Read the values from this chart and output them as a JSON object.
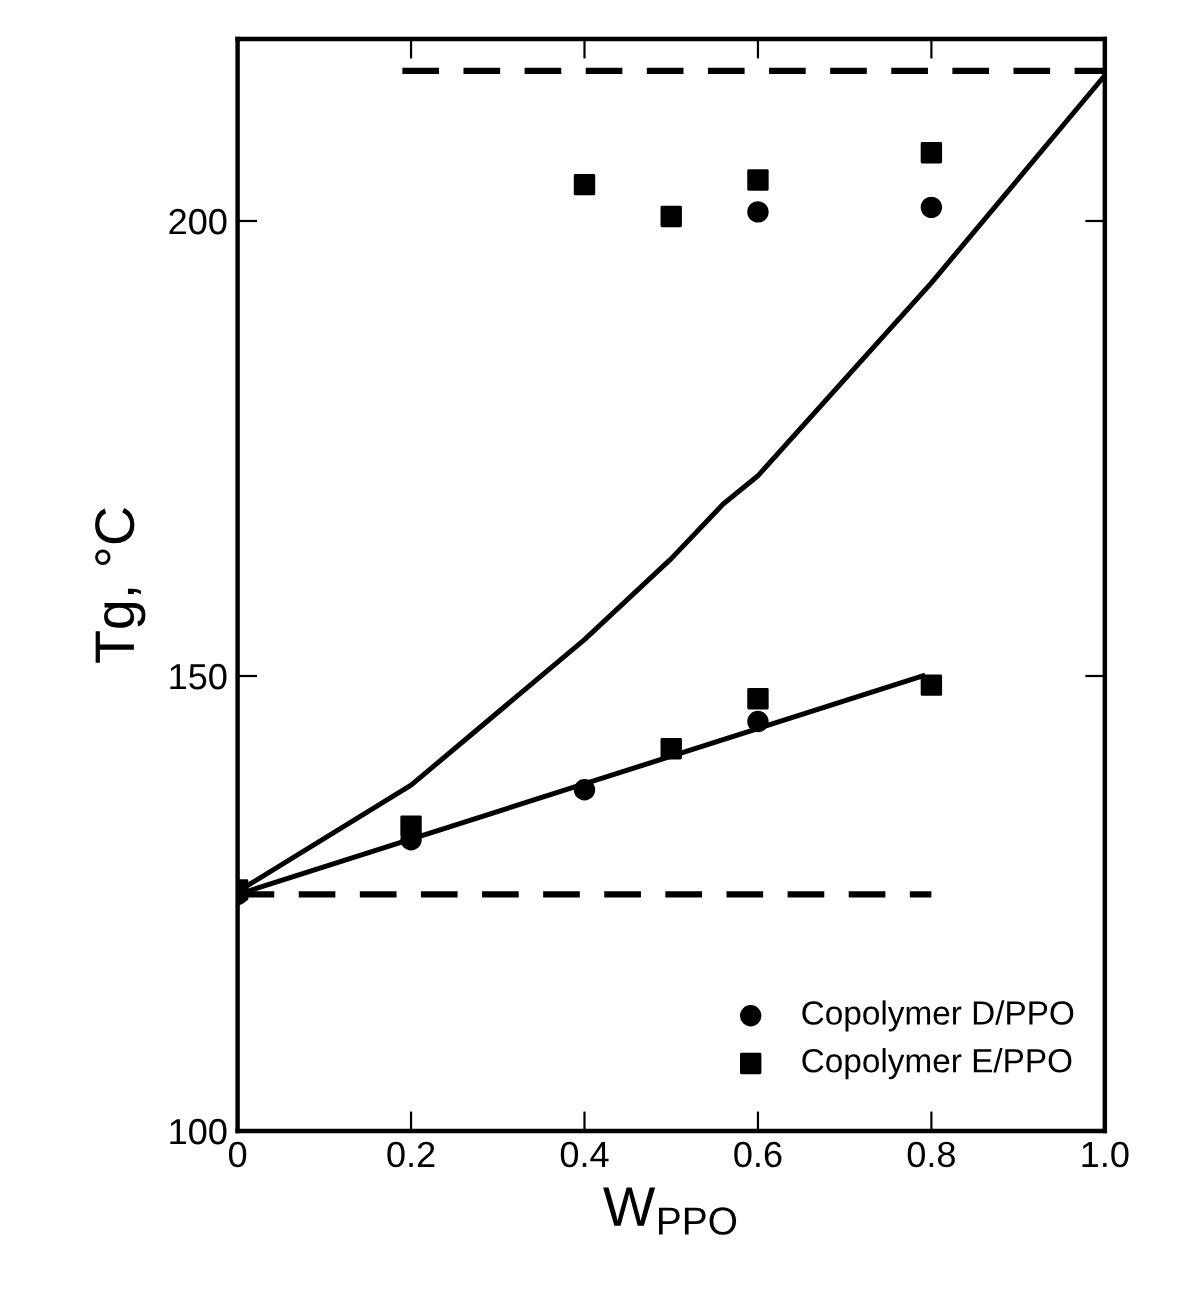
{
  "chart_data": {
    "type": "scatter",
    "xlabel": "W$_{PPO}$",
    "ylabel": "Tg, °C",
    "xlim": [
      0,
      1.0
    ],
    "ylim": [
      100,
      220
    ],
    "xticks": [
      0,
      {
        "value": 0.2,
        "label": "0.2"
      },
      {
        "value": 0.4,
        "label": "0.4"
      },
      {
        "value": 0.6,
        "label": "0.6"
      },
      {
        "value": 0.8,
        "label": "0.8"
      },
      {
        "value": 1.0,
        "label": "1.0"
      }
    ],
    "yticks": [
      100,
      150,
      200
    ],
    "legend": "bottom right",
    "grid": false,
    "series": [
      {
        "name": "Copolymer D/PPO",
        "color": "#000000",
        "marker": "circle",
        "x": [
          0,
          0.2,
          0.4,
          0.6,
          0.6,
          0.8
        ],
        "values": [
          126,
          132,
          137.5,
          145,
          201,
          201.5
        ]
      },
      {
        "name": "Copolymer E/PPO",
        "color": "#000000",
        "marker": "square",
        "x": [
          0,
          0.2,
          0.4,
          0.5,
          0.5,
          0.6,
          0.6,
          0.8,
          0.8
        ],
        "values": [
          126.5,
          133.5,
          204,
          142,
          200.5,
          147.5,
          204.5,
          149,
          207.5
        ]
      },
      {
        "type": "line",
        "color": "#000000",
        "line_style": "solid",
        "x": [
          0,
          0.79
        ],
        "values": [
          126,
          150
        ]
      },
      {
        "type": "line",
        "color": "#000000",
        "line_style": "solid",
        "x": [
          0,
          0.2,
          0.27,
          0.4,
          0.5,
          0.56,
          0.6,
          0.8,
          1.0
        ],
        "values": [
          126.3,
          138,
          143.6,
          154,
          162.9,
          168.9,
          172,
          193.2,
          216
        ]
      },
      {
        "type": "line",
        "color": "#000000",
        "line_style": "dashed",
        "x": [
          0.19,
          1.0
        ],
        "values": [
          216.5,
          216.5
        ]
      },
      {
        "type": "line",
        "color": "#000000",
        "line_style": "dashed",
        "x": [
          0,
          0.8
        ],
        "values": [
          126,
          126
        ]
      }
    ]
  }
}
